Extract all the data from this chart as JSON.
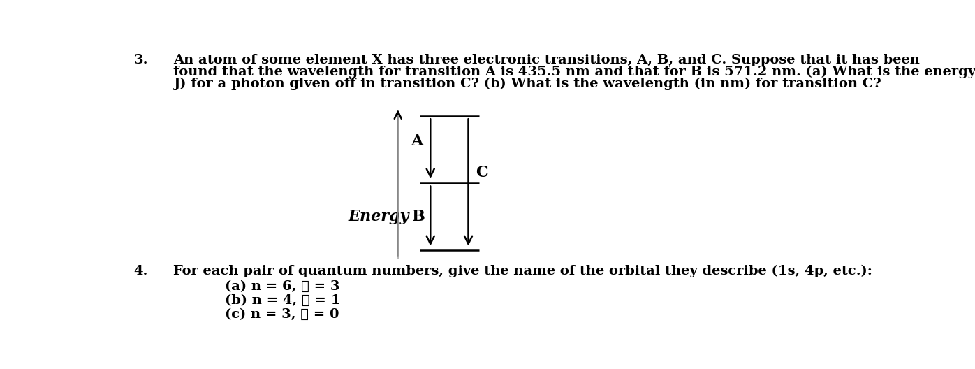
{
  "background_color": "#ffffff",
  "text_color": "#000000",
  "question3_number": "3.",
  "question3_line1": "An atom of some element X has three electronic transitions, A, B, and C. Suppose that it has been",
  "question3_line2": "found that the wavelength for transition A is 435.5 nm and that for B is 571.2 nm. (a) What is the energy (in",
  "question3_line3": "J) for a photon given off in transition C? (b) What is the wavelength (in nm) for transition C?",
  "question4_number": "4.",
  "question4_text": "For each pair of quantum numbers, give the name of the orbital they describe (1s, 4p, etc.):",
  "q4a": "(a) n = 6, ℓ = 3",
  "q4b": "(b) n = 4, ℓ = 1",
  "q4c": "(c) n = 3, ℓ = 0",
  "energy_label": "Energy",
  "label_A": "A",
  "label_B": "B",
  "label_C": "C",
  "font_size_text": 14,
  "font_size_diagram": 16,
  "font_family": "DejaVu Serif"
}
